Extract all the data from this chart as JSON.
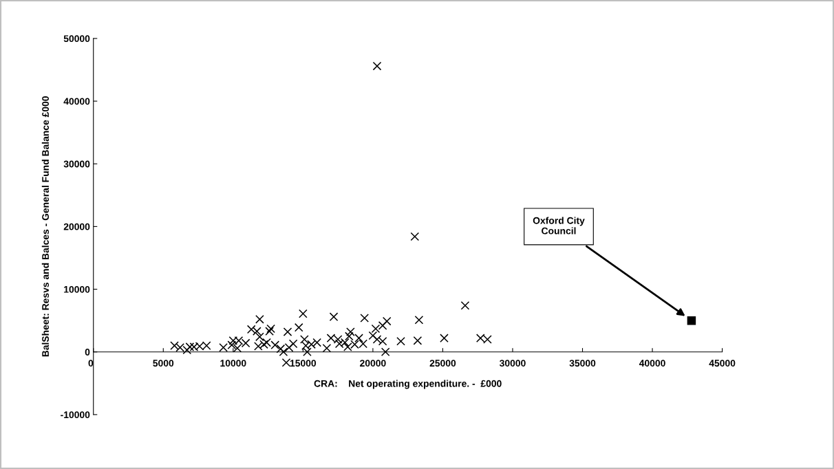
{
  "chart_data": {
    "type": "scatter",
    "xlabel": "CRA:    Net operating expenditure. -  £000",
    "ylabel": "BalSheet: Resvs and Balces - General Fund Balance £000",
    "xlim": [
      0,
      45000
    ],
    "ylim": [
      -10000,
      50000
    ],
    "xticks": [
      0,
      5000,
      10000,
      15000,
      20000,
      25000,
      30000,
      35000,
      40000,
      45000
    ],
    "yticks": [
      -10000,
      0,
      10000,
      20000,
      30000,
      40000,
      50000
    ],
    "grid": false,
    "legend": false,
    "marker": "cross",
    "annotations": [
      "Oxford City\nCouncil"
    ],
    "series": [
      {
        "color": "#000000",
        "x": [
          5800,
          6200,
          6700,
          6900,
          7200,
          7600,
          8100,
          9300,
          9900,
          10000,
          10300,
          10400,
          10900,
          11300,
          11700,
          11900,
          11900,
          11800,
          12200,
          12600,
          12700,
          12400,
          13000,
          13400,
          13600,
          13800,
          13900,
          14000,
          14300,
          14700,
          15000,
          15100,
          15300,
          15200,
          15600,
          16000,
          16700,
          17000,
          17200,
          17500,
          17600,
          18000,
          18200,
          18400,
          18300,
          18700,
          19000,
          19400,
          19300,
          20000,
          20200,
          20300,
          20700,
          20900,
          21000,
          20700,
          20300,
          23000,
          22000,
          23200,
          23300,
          25100,
          26600,
          27700,
          28200
        ],
        "values": [
          1000,
          700,
          300,
          800,
          800,
          900,
          1000,
          700,
          1100,
          1800,
          600,
          1800,
          1400,
          3600,
          3300,
          5200,
          2400,
          900,
          1200,
          3300,
          3700,
          1500,
          1100,
          500,
          0,
          -1700,
          3200,
          700,
          1300,
          3900,
          6100,
          2000,
          0,
          1000,
          1200,
          1500,
          600,
          2200,
          5600,
          2000,
          1300,
          1500,
          800,
          3200,
          2500,
          1200,
          2200,
          5400,
          1300,
          2600,
          3700,
          2000,
          4200,
          0,
          4900,
          1700,
          45600,
          18400,
          1700,
          1800,
          5100,
          2200,
          7400,
          2200,
          2000
        ]
      },
      {
        "color": "#000000",
        "marker": "square",
        "x": [
          42800
        ],
        "values": [
          5000
        ]
      }
    ]
  }
}
